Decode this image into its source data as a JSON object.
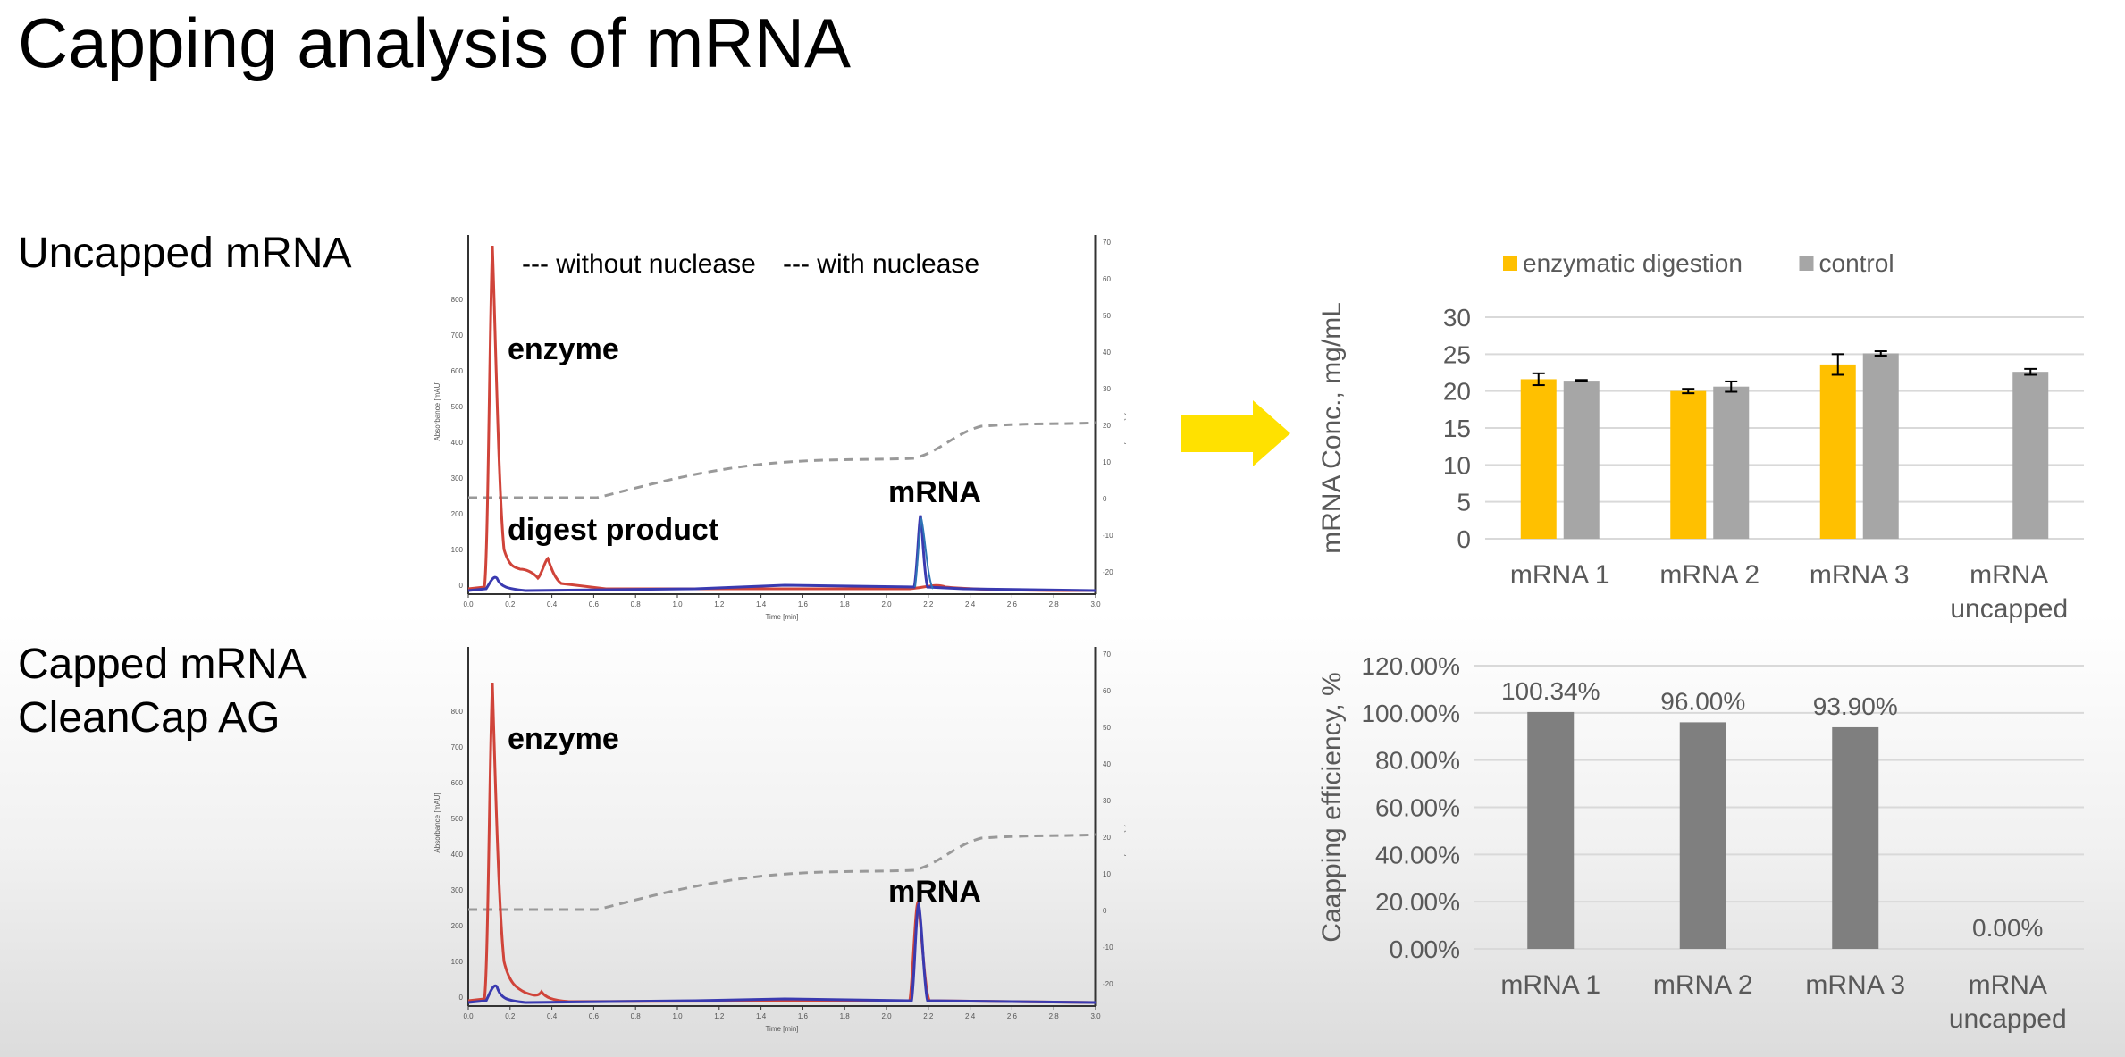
{
  "slide": {
    "title": "Capping analysis of mRNA",
    "uncapped_label": "Uncapped mRNA",
    "capped_label_line1": "Capped mRNA",
    "capped_label_line2": "CleanCap AG"
  },
  "chromatograms": {
    "x_tick_labels": [
      "0.0",
      "0.2",
      "0.4",
      "0.6",
      "0.8",
      "1.0",
      "1.2",
      "1.4",
      "1.6",
      "1.8",
      "2.0",
      "2.2",
      "2.4",
      "2.6",
      "2.8",
      "3.0"
    ],
    "y_left_tick_labels": [
      "0",
      "100",
      "200",
      "300",
      "400",
      "500",
      "600",
      "700",
      "800"
    ],
    "y_right_tick_labels": [
      "-20",
      "-10",
      "0",
      "10",
      "20",
      "30",
      "40",
      "50",
      "60",
      "70"
    ],
    "x_axis_label": "Time [min]",
    "y_left_label": "Absorbance [mAU]",
    "y_right_label": "Conductivity [mS/cm]",
    "colors": {
      "without": "#2e75b6",
      "with": "#d0443a",
      "conductivity": "#999999",
      "blue_trace": "#3a3ab0"
    },
    "top": {
      "legend_without": "--- without nuclease",
      "legend_with": "--- with nuclease",
      "label_enzyme": "enzyme",
      "label_digest": "digest product",
      "label_mrna": "mRNA"
    },
    "bottom": {
      "label_enzyme": "enzyme",
      "label_mrna": "mRNA"
    }
  },
  "arrow": {
    "color": "#ffe100"
  },
  "chart_data": [
    {
      "type": "bar",
      "legend_position": "top",
      "ylabel": "mRNA Conc., mg/mL",
      "ylim": [
        0,
        30
      ],
      "yticks": [
        "0",
        "5",
        "10",
        "15",
        "20",
        "25",
        "30"
      ],
      "categories": [
        "mRNA 1",
        "mRNA 2",
        "mRNA 3",
        "mRNA uncapped"
      ],
      "categories_lines": [
        [
          "mRNA 1"
        ],
        [
          "mRNA 2"
        ],
        [
          "mRNA 3"
        ],
        [
          "mRNA",
          "uncapped"
        ]
      ],
      "series": [
        {
          "name": "enzymatic digestion",
          "color": "#ffc000",
          "values": [
            21.6,
            20.0,
            23.6,
            null
          ],
          "errors": [
            0.8,
            0.3,
            1.4,
            null
          ]
        },
        {
          "name": "control",
          "color": "#a6a6a6",
          "values": [
            21.4,
            20.6,
            25.1,
            22.6
          ],
          "errors": [
            0.1,
            0.7,
            0.3,
            0.4
          ]
        }
      ]
    },
    {
      "type": "bar",
      "ylabel": "Caapping efficiency, %",
      "ylim": [
        0,
        120
      ],
      "yticks": [
        "0.00%",
        "20.00%",
        "40.00%",
        "60.00%",
        "80.00%",
        "100.00%",
        "120.00%"
      ],
      "categories": [
        "mRNA 1",
        "mRNA 2",
        "mRNA 3",
        "mRNA uncapped"
      ],
      "categories_lines": [
        [
          "mRNA 1"
        ],
        [
          "mRNA 2"
        ],
        [
          "mRNA 3"
        ],
        [
          "mRNA",
          "uncapped"
        ]
      ],
      "color": "#7f7f7f",
      "values": [
        100.34,
        96.0,
        93.9,
        0.0
      ],
      "data_labels": [
        "100.34%",
        "96.00%",
        "93.90%",
        "0.00%"
      ]
    }
  ]
}
